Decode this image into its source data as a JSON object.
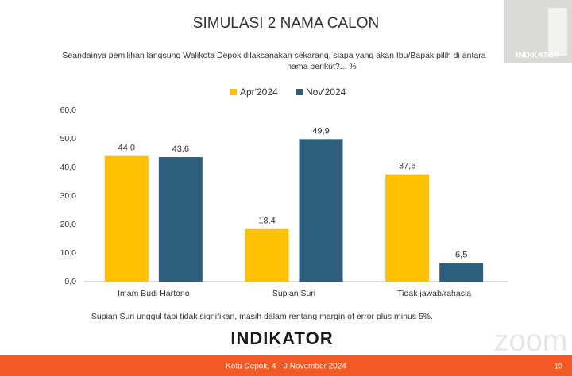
{
  "chart_data": {
    "type": "bar",
    "title": "SIMULASI 2 NAMA CALON",
    "subtitle": "Seandainya pemilihan langsung Walikota Depok dilaksanakan sekarang, siapa yang akan Ibu/Bapak pilih di antara",
    "subtitle_line2": "nama berikut?... %",
    "categories": [
      "Imam Budi Hartono",
      "Supian Suri",
      "Tidak jawab/rahasia"
    ],
    "series": [
      {
        "name": "Apr'2024",
        "color": "#FFC000",
        "values": [
          44.0,
          18.4,
          37.6
        ],
        "value_labels": [
          "44,0",
          "18,4",
          "37,6"
        ]
      },
      {
        "name": "Nov'2024",
        "color": "#2F5F7F",
        "values": [
          43.6,
          49.9,
          6.5
        ],
        "value_labels": [
          "43,6",
          "49,9",
          "6,5"
        ]
      }
    ],
    "ylim": [
      0,
      60
    ],
    "yticks": [
      {
        "value": 0,
        "label": "0,0"
      },
      {
        "value": 10,
        "label": "10,0"
      },
      {
        "value": 20,
        "label": "20,0"
      },
      {
        "value": 30,
        "label": "30,0"
      },
      {
        "value": 40,
        "label": "40,0"
      },
      {
        "value": 50,
        "label": "50,0"
      },
      {
        "value": 60,
        "label": "60,0"
      }
    ],
    "grid": false,
    "legend": "top"
  },
  "footnote": "Supian Suri unggul tapi tidak signifikan, masih dalam rentang margin of error plus minus 5%.",
  "logo": "INDIKATOR",
  "footer": "Kota Depok, 4 - 9 November 2024",
  "page_number": "19",
  "webcam_label": "INDIKATOR",
  "watermark": "zoom"
}
